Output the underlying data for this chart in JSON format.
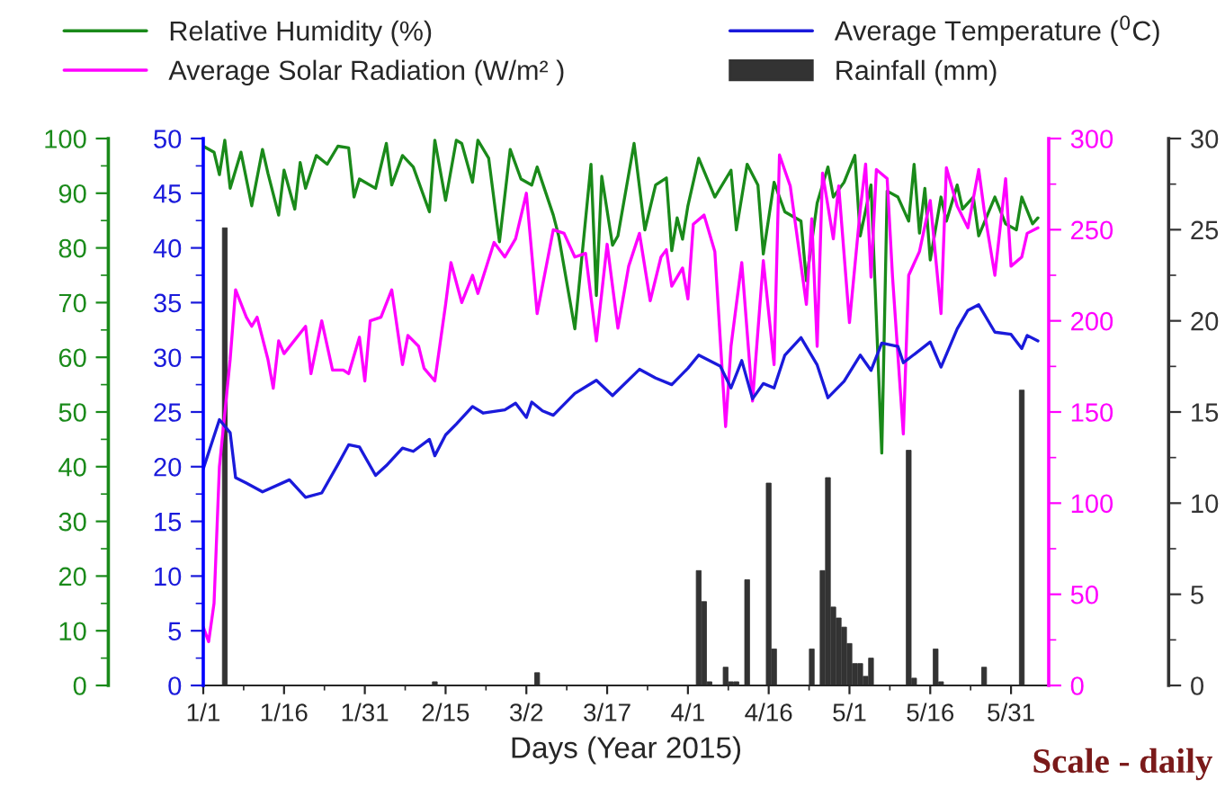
{
  "chart_data": [
    {
      "type": "line",
      "xlabel": "Days (Year 2015)",
      "xlim": [
        "2015-01-01",
        "2015-06-07"
      ],
      "xticks": [
        {
          "value": "2015-01-01",
          "label": "1/1"
        },
        {
          "value": "2015-01-16",
          "label": "1/16"
        },
        {
          "value": "2015-01-31",
          "label": "1/31"
        },
        {
          "value": "2015-02-15",
          "label": "2/15"
        },
        {
          "value": "2015-03-02",
          "label": "3/2"
        },
        {
          "value": "2015-03-17",
          "label": "3/17"
        },
        {
          "value": "2015-04-01",
          "label": "4/1"
        },
        {
          "value": "2015-04-16",
          "label": "4/16"
        },
        {
          "value": "2015-05-01",
          "label": "5/1"
        },
        {
          "value": "2015-05-16",
          "label": "5/16"
        },
        {
          "value": "2015-05-31",
          "label": "5/31"
        }
      ],
      "ylim": [
        0,
        100
      ],
      "yticks": [
        0,
        10,
        20,
        30,
        40,
        50,
        60,
        70,
        80,
        90,
        100
      ],
      "y2lim": [
        0,
        300
      ],
      "y2ticks": [
        0,
        50,
        100,
        150,
        200,
        250,
        300
      ],
      "y3lim": [
        0,
        50
      ],
      "y3ticks": [
        0,
        5,
        10,
        15,
        20,
        25,
        30,
        35,
        40,
        45,
        50
      ],
      "grid": false,
      "legend": "top",
      "marker": "none",
      "line_style": "solid",
      "annotations": [
        "Scale - daily"
      ],
      "series": [
        {
          "name": "Relative Humidity (%)",
          "axis": "y",
          "color": "#1a8a1a",
          "x": [
            "2015-01-01",
            "2015-01-03",
            "2015-01-04",
            "2015-01-05",
            "2015-01-06",
            "2015-01-08",
            "2015-01-10",
            "2015-01-12",
            "2015-01-13",
            "2015-01-15",
            "2015-01-16",
            "2015-01-18",
            "2015-01-19",
            "2015-01-20",
            "2015-01-22",
            "2015-01-24",
            "2015-01-26",
            "2015-01-28",
            "2015-01-29",
            "2015-01-30",
            "2015-02-02",
            "2015-02-04",
            "2015-02-05",
            "2015-02-07",
            "2015-02-09",
            "2015-02-12",
            "2015-02-13",
            "2015-02-15",
            "2015-02-17",
            "2015-02-18",
            "2015-02-20",
            "2015-02-21",
            "2015-02-23",
            "2015-02-25",
            "2015-02-27",
            "2015-03-01",
            "2015-03-03",
            "2015-03-04",
            "2015-03-07",
            "2015-03-08",
            "2015-03-11",
            "2015-03-14",
            "2015-03-15",
            "2015-03-16",
            "2015-03-18",
            "2015-03-19",
            "2015-03-22",
            "2015-03-24",
            "2015-03-26",
            "2015-03-28",
            "2015-03-29",
            "2015-03-30",
            "2015-03-31",
            "2015-04-01",
            "2015-04-03",
            "2015-04-06",
            "2015-04-09",
            "2015-04-10",
            "2015-04-12",
            "2015-04-14",
            "2015-04-15",
            "2015-04-17",
            "2015-04-19",
            "2015-04-22",
            "2015-04-23",
            "2015-04-25",
            "2015-04-27",
            "2015-04-28",
            "2015-04-30",
            "2015-05-02",
            "2015-05-03",
            "2015-05-05",
            "2015-05-07",
            "2015-05-08",
            "2015-05-10",
            "2015-05-12",
            "2015-05-13",
            "2015-05-14",
            "2015-05-15",
            "2015-05-16",
            "2015-05-18",
            "2015-05-19",
            "2015-05-21",
            "2015-05-22",
            "2015-05-24",
            "2015-05-25",
            "2015-05-28",
            "2015-05-30",
            "2015-06-01",
            "2015-06-02",
            "2015-06-04",
            "2015-06-05"
          ],
          "values": [
            98.6,
            97.5,
            93.4,
            99.7,
            90.9,
            97.5,
            87.7,
            98.0,
            93.7,
            86.0,
            94.2,
            87.1,
            95.6,
            90.9,
            96.9,
            95.3,
            98.6,
            98.3,
            89.3,
            92.6,
            90.9,
            99.1,
            91.5,
            96.9,
            94.8,
            86.6,
            99.7,
            88.7,
            99.7,
            99.1,
            92.0,
            99.7,
            96.4,
            81.1,
            98.0,
            92.6,
            91.5,
            94.8,
            86.0,
            82.2,
            65.2,
            95.3,
            71.3,
            93.1,
            80.5,
            82.2,
            99.1,
            83.3,
            91.5,
            92.8,
            79.5,
            85.5,
            81.6,
            87.7,
            96.4,
            89.3,
            94.2,
            83.3,
            95.3,
            91.5,
            78.9,
            92.0,
            86.6,
            84.9,
            74.0,
            88.2,
            94.8,
            89.3,
            92.0,
            96.9,
            82.2,
            91.5,
            42.5,
            90.4,
            89.3,
            84.9,
            95.3,
            82.7,
            90.9,
            77.8,
            89.3,
            84.9,
            91.5,
            87.1,
            89.3,
            82.2,
            89.3,
            84.4,
            83.3,
            89.3,
            84.4,
            85.5
          ]
        },
        {
          "name": "Average Solar Radiation (W/m² )",
          "axis": "y2",
          "color": "#ff00ff",
          "x": [
            "2015-01-01",
            "2015-01-02",
            "2015-01-03",
            "2015-01-04",
            "2015-01-06",
            "2015-01-07",
            "2015-01-09",
            "2015-01-10",
            "2015-01-11",
            "2015-01-13",
            "2015-01-14",
            "2015-01-15",
            "2015-01-16",
            "2015-01-20",
            "2015-01-21",
            "2015-01-23",
            "2015-01-25",
            "2015-01-27",
            "2015-01-28",
            "2015-01-30",
            "2015-01-31",
            "2015-02-01",
            "2015-02-03",
            "2015-02-05",
            "2015-02-07",
            "2015-02-08",
            "2015-02-10",
            "2015-02-11",
            "2015-02-13",
            "2015-02-15",
            "2015-02-16",
            "2015-02-18",
            "2015-02-20",
            "2015-02-21",
            "2015-02-24",
            "2015-02-26",
            "2015-02-28",
            "2015-03-02",
            "2015-03-04",
            "2015-03-07",
            "2015-03-09",
            "2015-03-11",
            "2015-03-13",
            "2015-03-15",
            "2015-03-17",
            "2015-03-19",
            "2015-03-21",
            "2015-03-23",
            "2015-03-25",
            "2015-03-27",
            "2015-03-28",
            "2015-03-29",
            "2015-03-31",
            "2015-04-01",
            "2015-04-02",
            "2015-04-04",
            "2015-04-06",
            "2015-04-08",
            "2015-04-09",
            "2015-04-11",
            "2015-04-13",
            "2015-04-15",
            "2015-04-17",
            "2015-04-18",
            "2015-04-20",
            "2015-04-23",
            "2015-04-24",
            "2015-04-25",
            "2015-04-26",
            "2015-04-28",
            "2015-04-29",
            "2015-05-01",
            "2015-05-03",
            "2015-05-04",
            "2015-05-05",
            "2015-05-06",
            "2015-05-08",
            "2015-05-09",
            "2015-05-11",
            "2015-05-12",
            "2015-05-14",
            "2015-05-16",
            "2015-05-18",
            "2015-05-19",
            "2015-05-21",
            "2015-05-23",
            "2015-05-25",
            "2015-05-26",
            "2015-05-28",
            "2015-05-30",
            "2015-05-31",
            "2015-06-02",
            "2015-06-03",
            "2015-06-05"
          ],
          "values": [
            32,
            24,
            45,
            120,
            179,
            217,
            202,
            197,
            202,
            179,
            163,
            189,
            182,
            197,
            171,
            200,
            173,
            173,
            171,
            191,
            167,
            200,
            202,
            217,
            176,
            192,
            186,
            174,
            167,
            209,
            232,
            210,
            225,
            215,
            243,
            235,
            245,
            270,
            204,
            250,
            248,
            235,
            237,
            189,
            242,
            196,
            230,
            248,
            211,
            235,
            239,
            219,
            229,
            212,
            253,
            258,
            238,
            142,
            186,
            232,
            156,
            233,
            176,
            291,
            274,
            209,
            256,
            186,
            281,
            245,
            274,
            199,
            261,
            286,
            224,
            283,
            278,
            224,
            138,
            225,
            238,
            266,
            204,
            284,
            263,
            251,
            283,
            261,
            225,
            278,
            230,
            235,
            248,
            251
          ]
        },
        {
          "name": "Average Temperature ($^{0}$C)",
          "axis": "y3",
          "color": "#1a1adb",
          "x": [
            "2015-01-01",
            "2015-01-04",
            "2015-01-06",
            "2015-01-07",
            "2015-01-09",
            "2015-01-12",
            "2015-01-17",
            "2015-01-20",
            "2015-01-23",
            "2015-01-26",
            "2015-01-28",
            "2015-01-30",
            "2015-02-02",
            "2015-02-04",
            "2015-02-07",
            "2015-02-09",
            "2015-02-12",
            "2015-02-13",
            "2015-02-15",
            "2015-02-17",
            "2015-02-20",
            "2015-02-22",
            "2015-02-26",
            "2015-02-28",
            "2015-03-02",
            "2015-03-03",
            "2015-03-05",
            "2015-03-07",
            "2015-03-11",
            "2015-03-15",
            "2015-03-18",
            "2015-03-23",
            "2015-03-26",
            "2015-03-29",
            "2015-04-01",
            "2015-04-03",
            "2015-04-07",
            "2015-04-09",
            "2015-04-11",
            "2015-04-13",
            "2015-04-15",
            "2015-04-17",
            "2015-04-19",
            "2015-04-22",
            "2015-04-25",
            "2015-04-27",
            "2015-04-30",
            "2015-05-03",
            "2015-05-05",
            "2015-05-07",
            "2015-05-10",
            "2015-05-11",
            "2015-05-16",
            "2015-05-18",
            "2015-05-21",
            "2015-05-23",
            "2015-05-25",
            "2015-05-28",
            "2015-05-31",
            "2015-06-02",
            "2015-06-03",
            "2015-06-05"
          ],
          "values": [
            19.8,
            24.3,
            23.1,
            19.0,
            18.5,
            17.7,
            18.8,
            17.2,
            17.6,
            20.2,
            22.0,
            21.8,
            19.2,
            20.1,
            21.7,
            21.4,
            22.5,
            21.0,
            22.9,
            23.9,
            25.5,
            24.9,
            25.2,
            25.8,
            24.5,
            25.9,
            25.1,
            24.7,
            26.7,
            27.9,
            26.5,
            28.9,
            28.1,
            27.5,
            29.0,
            30.2,
            29.2,
            27.2,
            29.7,
            26.2,
            27.6,
            27.2,
            30.2,
            31.8,
            29.3,
            26.3,
            27.8,
            30.2,
            28.8,
            31.3,
            31.0,
            29.5,
            31.4,
            29.1,
            32.6,
            34.3,
            34.8,
            32.3,
            32.1,
            30.8,
            32.0,
            31.5
          ]
        }
      ]
    },
    {
      "type": "bar",
      "xlim": [
        "2015-01-01",
        "2015-06-07"
      ],
      "ylim": [
        0,
        30
      ],
      "yticks": [
        0,
        5,
        10,
        15,
        20,
        25,
        30
      ],
      "tick_labels": "y",
      "legend": "top",
      "series": [
        {
          "name": "Rainfall (mm)",
          "color": "#333333",
          "x": [
            "2015-01-05",
            "2015-02-13",
            "2015-03-04",
            "2015-04-03",
            "2015-04-04",
            "2015-04-05",
            "2015-04-08",
            "2015-04-09",
            "2015-04-10",
            "2015-04-12",
            "2015-04-16",
            "2015-04-17",
            "2015-04-24",
            "2015-04-26",
            "2015-04-27",
            "2015-04-28",
            "2015-04-29",
            "2015-04-30",
            "2015-05-01",
            "2015-05-02",
            "2015-05-03",
            "2015-05-04",
            "2015-05-05",
            "2015-05-12",
            "2015-05-13",
            "2015-05-17",
            "2015-05-18",
            "2015-05-26",
            "2015-06-02"
          ],
          "values": [
            25.1,
            0.2,
            0.7,
            6.3,
            4.6,
            0.2,
            1.0,
            0.2,
            0.2,
            5.8,
            11.1,
            2.0,
            2.0,
            6.3,
            11.4,
            4.3,
            3.7,
            3.2,
            2.3,
            1.2,
            1.2,
            0.5,
            1.5,
            12.9,
            0.4,
            2.0,
            0.2,
            1.0,
            16.2
          ]
        }
      ]
    }
  ]
}
